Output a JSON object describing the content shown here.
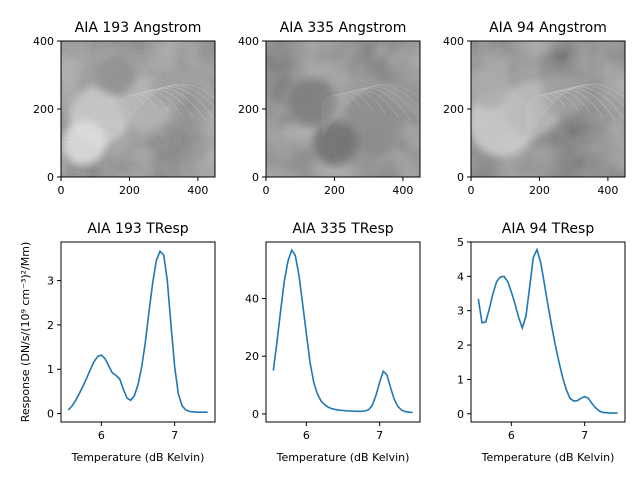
{
  "chart_data": [
    {
      "type": "image",
      "title": "AIA 193 Angstrom",
      "xlim": [
        0,
        450
      ],
      "ylim": [
        0,
        400
      ],
      "xticks": [
        0,
        200,
        400
      ],
      "yticks": [
        0,
        200,
        400
      ],
      "xtick_labels": [
        "0",
        "200",
        "400"
      ],
      "ytick_labels": [
        "0",
        "200",
        "400"
      ],
      "colormap": "gray"
    },
    {
      "type": "image",
      "title": "AIA 335 Angstrom",
      "xlim": [
        0,
        450
      ],
      "ylim": [
        0,
        400
      ],
      "xticks": [
        0,
        200,
        400
      ],
      "yticks": [
        0,
        200,
        400
      ],
      "xtick_labels": [
        "0",
        "200",
        "400"
      ],
      "ytick_labels": [
        "0",
        "200",
        "400"
      ],
      "colormap": "gray"
    },
    {
      "type": "image",
      "title": "AIA 94 Angstrom",
      "xlim": [
        0,
        450
      ],
      "ylim": [
        0,
        400
      ],
      "xticks": [
        0,
        200,
        400
      ],
      "yticks": [
        0,
        200,
        400
      ],
      "xtick_labels": [
        "0",
        "200",
        "400"
      ],
      "ytick_labels": [
        "0",
        "200",
        "400"
      ],
      "colormap": "gray"
    },
    {
      "type": "line",
      "title": "AIA 193 TResp",
      "xlabel": "Temperature (dB Kelvin)",
      "ylabel": "Response (DN/s/(10⁹ cm⁻³)²/Mm)",
      "xlim": [
        5.45,
        7.55
      ],
      "ylim": [
        -0.19,
        3.87
      ],
      "xticks": [
        6,
        7
      ],
      "xtick_labels": [
        "6",
        "7"
      ],
      "yticks": [
        0,
        1,
        2,
        3
      ],
      "ytick_labels": [
        "0",
        "1",
        "2",
        "3"
      ],
      "x": [
        5.55,
        5.6,
        5.65,
        5.7,
        5.75,
        5.8,
        5.85,
        5.9,
        5.95,
        6.0,
        6.05,
        6.1,
        6.15,
        6.2,
        6.25,
        6.3,
        6.35,
        6.4,
        6.45,
        6.5,
        6.55,
        6.6,
        6.65,
        6.7,
        6.75,
        6.8,
        6.85,
        6.9,
        6.95,
        7.0,
        7.05,
        7.1,
        7.15,
        7.2,
        7.25,
        7.3,
        7.35,
        7.4,
        7.45
      ],
      "values": [
        0.08,
        0.17,
        0.3,
        0.45,
        0.62,
        0.8,
        0.99,
        1.17,
        1.29,
        1.32,
        1.24,
        1.08,
        0.92,
        0.86,
        0.78,
        0.55,
        0.35,
        0.3,
        0.4,
        0.65,
        1.05,
        1.6,
        2.3,
        2.95,
        3.45,
        3.66,
        3.58,
        3.0,
        2.0,
        1.05,
        0.45,
        0.18,
        0.08,
        0.05,
        0.04,
        0.03,
        0.03,
        0.03,
        0.03
      ]
    },
    {
      "type": "line",
      "title": "AIA 335 TResp",
      "xlabel": "Temperature (dB Kelvin)",
      "ylabel": "",
      "xlim": [
        5.45,
        7.55
      ],
      "ylim": [
        -2.8,
        59.6
      ],
      "xticks": [
        6,
        7
      ],
      "xtick_labels": [
        "6",
        "7"
      ],
      "yticks": [
        0,
        20,
        40
      ],
      "ytick_labels": [
        "0",
        "20",
        "40"
      ],
      "x": [
        5.55,
        5.6,
        5.65,
        5.7,
        5.75,
        5.8,
        5.85,
        5.9,
        5.95,
        6.0,
        6.05,
        6.1,
        6.15,
        6.2,
        6.25,
        6.3,
        6.35,
        6.4,
        6.45,
        6.5,
        6.55,
        6.6,
        6.65,
        6.7,
        6.75,
        6.8,
        6.85,
        6.9,
        6.95,
        7.0,
        7.05,
        7.1,
        7.15,
        7.2,
        7.25,
        7.3,
        7.35,
        7.4,
        7.45
      ],
      "values": [
        15,
        25,
        36,
        46,
        53,
        56.8,
        55,
        48,
        38,
        28,
        18,
        11,
        7,
        4.5,
        3.2,
        2.3,
        1.8,
        1.5,
        1.3,
        1.2,
        1.1,
        1.0,
        0.95,
        0.9,
        0.9,
        1.0,
        1.5,
        3,
        6.5,
        11,
        14.8,
        13.5,
        9,
        5,
        2.5,
        1.3,
        0.8,
        0.6,
        0.5
      ]
    },
    {
      "type": "line",
      "title": "AIA 94 TResp",
      "xlabel": "Temperature (dB Kelvin)",
      "ylabel": "",
      "xlim": [
        5.45,
        7.55
      ],
      "ylim": [
        -0.24,
        5.0
      ],
      "xticks": [
        6,
        7
      ],
      "xtick_labels": [
        "6",
        "7"
      ],
      "yticks": [
        0,
        1,
        2,
        3,
        4,
        5
      ],
      "ytick_labels": [
        "0",
        "1",
        "2",
        "3",
        "4",
        "5"
      ],
      "x": [
        5.55,
        5.6,
        5.65,
        5.7,
        5.75,
        5.8,
        5.85,
        5.9,
        5.95,
        6.0,
        6.05,
        6.1,
        6.15,
        6.2,
        6.25,
        6.3,
        6.35,
        6.4,
        6.45,
        6.5,
        6.55,
        6.6,
        6.65,
        6.7,
        6.75,
        6.8,
        6.85,
        6.9,
        6.95,
        7.0,
        7.05,
        7.1,
        7.15,
        7.2,
        7.25,
        7.3,
        7.35,
        7.4,
        7.45
      ],
      "values": [
        3.35,
        2.65,
        2.67,
        3.05,
        3.5,
        3.85,
        3.98,
        4.0,
        3.85,
        3.55,
        3.2,
        2.8,
        2.5,
        2.85,
        3.7,
        4.55,
        4.78,
        4.4,
        3.8,
        3.15,
        2.55,
        2.0,
        1.5,
        1.05,
        0.7,
        0.45,
        0.37,
        0.38,
        0.45,
        0.5,
        0.45,
        0.3,
        0.17,
        0.08,
        0.04,
        0.03,
        0.02,
        0.02,
        0.02
      ]
    }
  ]
}
